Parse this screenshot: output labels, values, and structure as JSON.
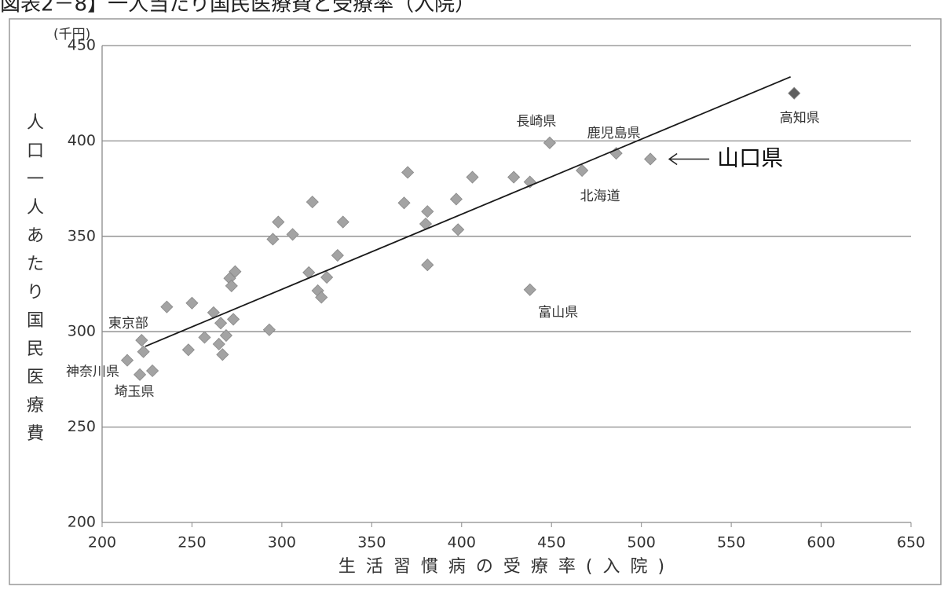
{
  "chart_data": {
    "type": "scatter",
    "title": "図表2－8】一人当たり国民医療費と受療率（入院）",
    "y_unit": "(千円)",
    "ylabel": "人口一人あたり国民医療費",
    "xlabel": "生活習慣病の受療率(入院)",
    "xlim": [
      200,
      650
    ],
    "ylim": [
      200,
      450
    ],
    "xticks": [
      200,
      250,
      300,
      350,
      400,
      450,
      500,
      550,
      600,
      650
    ],
    "yticks": [
      200,
      250,
      300,
      350,
      400,
      450
    ],
    "grid": true,
    "series": [
      {
        "color": "#5f5f5f",
        "x": [
          585
        ],
        "y": [
          425
        ],
        "labels": [
          "高知県"
        ]
      },
      {
        "color": "#a3a3a3",
        "x": [
          449,
          486,
          505,
          467,
          370,
          406,
          429,
          438,
          368,
          317,
          397,
          381,
          380,
          398,
          334,
          298,
          306,
          295,
          331,
          381,
          274,
          315,
          325,
          271,
          272,
          320,
          322,
          438,
          236,
          250,
          262,
          273,
          266,
          293,
          257,
          269,
          222,
          265,
          248,
          223,
          267,
          214,
          228,
          221
        ],
        "y": [
          399,
          393.5,
          390.5,
          384.5,
          383.5,
          381,
          381,
          378.5,
          367.5,
          368,
          369.5,
          363,
          356.5,
          353.5,
          357.5,
          357.5,
          351,
          348.5,
          340,
          335,
          331.5,
          331,
          328.5,
          328,
          324,
          321.5,
          318,
          322,
          313,
          315,
          310,
          306.5,
          304.5,
          301,
          297,
          298,
          295.5,
          293.5,
          290.5,
          289.5,
          288,
          285,
          279.5,
          277.5
        ],
        "labels": [
          "長崎県",
          "鹿児島県",
          "山口県",
          "北海道",
          null,
          null,
          null,
          null,
          null,
          null,
          null,
          null,
          null,
          null,
          null,
          null,
          null,
          null,
          null,
          null,
          null,
          null,
          null,
          null,
          null,
          null,
          null,
          "富山県",
          null,
          null,
          null,
          null,
          null,
          null,
          null,
          null,
          "東京部",
          null,
          null,
          null,
          null,
          "神奈川県",
          null,
          "埼玉県"
        ]
      }
    ],
    "trendline": {
      "color": "#1a1a1a",
      "x": [
        224,
        583
      ],
      "y": [
        292.3,
        433.6
      ]
    }
  }
}
